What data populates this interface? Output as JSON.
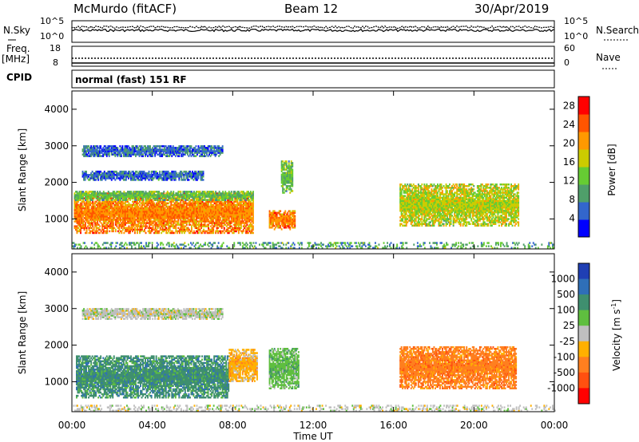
{
  "header": {
    "station": "McMurdo (fitACF)",
    "beam": "Beam 12",
    "date": "30/Apr/2019"
  },
  "noise_panel": {
    "left_label": "N.Sky",
    "right_label": "N.Search",
    "left_ticks": [
      "10^5",
      "10^0"
    ],
    "right_ticks": [
      "10^5",
      "10^0"
    ]
  },
  "freq_panel": {
    "left_label_1": "Freq.",
    "left_label_2": "[MHz]",
    "right_label": "Nave",
    "left_ticks": [
      "18",
      "8"
    ],
    "right_ticks": [
      "60",
      "0"
    ]
  },
  "cpid": {
    "label": "CPID",
    "text": "normal (fast) 151 RF"
  },
  "x_axis": {
    "label": "Time UT",
    "ticks": [
      "00:00",
      "04:00",
      "08:00",
      "12:00",
      "16:00",
      "20:00",
      "00:00"
    ]
  },
  "chart_data": [
    {
      "type": "heatmap",
      "ylabel": "Slant Range [km]",
      "yticks": [
        "1000",
        "2000",
        "3000",
        "4000"
      ],
      "ylim": [
        180,
        4500
      ],
      "x_range_hours": [
        0,
        24
      ],
      "colorbar": {
        "label": "Power [dB]",
        "ticks": [
          "4",
          "8",
          "12",
          "16",
          "20",
          "24",
          "28"
        ],
        "range": [
          0,
          30
        ],
        "colors": [
          "#0000ff",
          "#3366cc",
          "#4f9f6a",
          "#66cc33",
          "#cccc00",
          "#ff9900",
          "#ff5500",
          "#ff0000"
        ]
      },
      "regions": [
        {
          "t0": 0.1,
          "t1": 9.0,
          "r0": 600,
          "r1": 1700,
          "val": 22
        },
        {
          "t0": 0.1,
          "t1": 9.0,
          "r0": 1500,
          "r1": 1750,
          "val": 12
        },
        {
          "t0": 0.5,
          "t1": 7.5,
          "r0": 2700,
          "r1": 3000,
          "val": 6
        },
        {
          "t0": 0.5,
          "t1": 6.5,
          "r0": 2050,
          "r1": 2300,
          "val": 6
        },
        {
          "t0": 9.8,
          "t1": 11.1,
          "r0": 700,
          "r1": 1200,
          "val": 22
        },
        {
          "t0": 10.4,
          "t1": 11.0,
          "r0": 1700,
          "r1": 2600,
          "val": 12
        },
        {
          "t0": 16.3,
          "t1": 22.2,
          "r0": 800,
          "r1": 1950,
          "val": 16
        },
        {
          "t0": 0.0,
          "t1": 24.0,
          "r0": 190,
          "r1": 330,
          "val": 10
        }
      ]
    },
    {
      "type": "heatmap",
      "ylabel": "Slant Range [km]",
      "yticks": [
        "1000",
        "2000",
        "3000",
        "4000"
      ],
      "ylim": [
        180,
        4500
      ],
      "x_range_hours": [
        0,
        24
      ],
      "colorbar": {
        "label": "Velocity [m s",
        "label_sup": "-1",
        "label_end": "]",
        "ticks": [
          "1000",
          "500",
          "100",
          "25",
          "-25",
          "-100",
          "-500",
          "-1000"
        ],
        "colors": [
          "#1f3fb4",
          "#2f6fb8",
          "#3f8f6f",
          "#5fbf3f",
          "#bfbfbf",
          "#ffb000",
          "#ff7f1f",
          "#ff5010",
          "#ff0000"
        ]
      },
      "regions": [
        {
          "t0": 0.2,
          "t1": 7.8,
          "r0": 550,
          "r1": 1700,
          "val": 2
        },
        {
          "t0": 7.8,
          "t1": 9.2,
          "r0": 1000,
          "r1": 1900,
          "val": 5
        },
        {
          "t0": 9.8,
          "t1": 11.3,
          "r0": 800,
          "r1": 1900,
          "val": 3
        },
        {
          "t0": 16.3,
          "t1": 22.1,
          "r0": 800,
          "r1": 1950,
          "val": 6
        },
        {
          "t0": 0.5,
          "t1": 7.5,
          "r0": 2700,
          "r1": 3000,
          "val": 4
        },
        {
          "t0": 0.0,
          "t1": 24.0,
          "r0": 190,
          "r1": 330,
          "val": 4
        }
      ]
    }
  ]
}
